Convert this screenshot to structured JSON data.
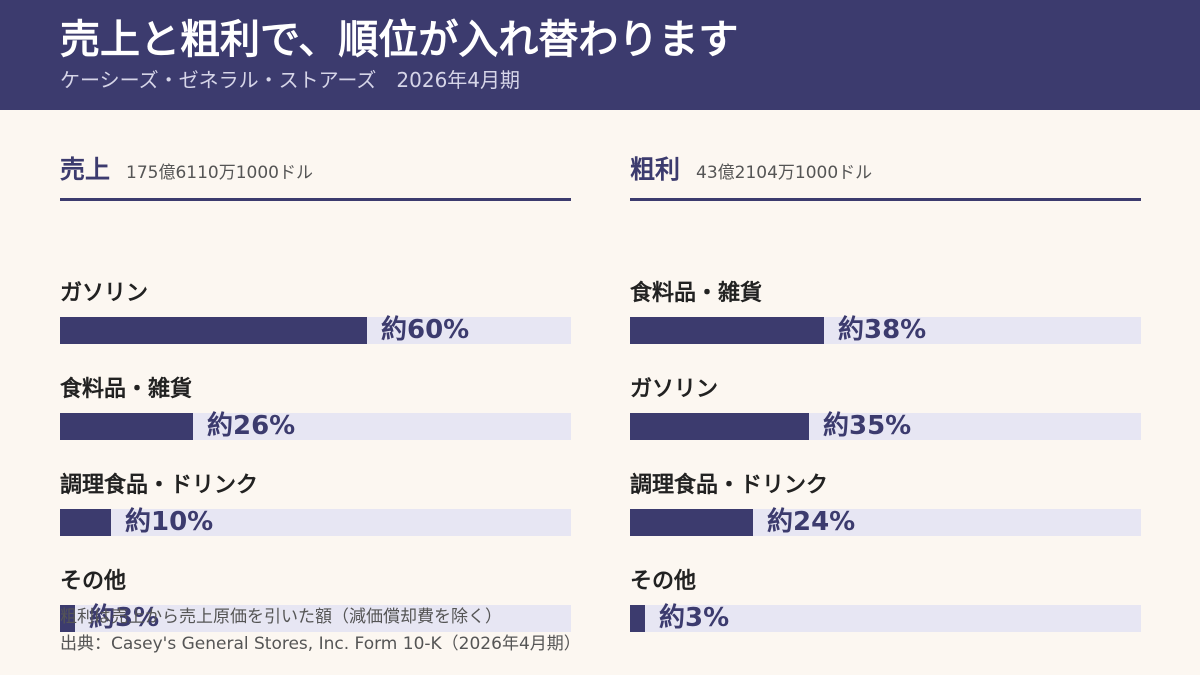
{
  "header": {
    "title": "売上と粗利で、順位が入れ替わります",
    "subtitle": "ケーシーズ・ゼネラル・ストアーズ　2026年4月期"
  },
  "colors": {
    "header_bg": "#3c3b6e",
    "bar": "#3c3b6e",
    "track": "#e7e6f3",
    "background": "#fcf7f1"
  },
  "chart_data": [
    {
      "type": "bar",
      "orientation": "horizontal",
      "title": "売上",
      "subtitle": "175億6110万1000ドル",
      "xlim": [
        0,
        100
      ],
      "categories": [
        "ガソリン",
        "食料品・雑貨",
        "調理食品・ドリンク",
        "その他"
      ],
      "values": [
        60,
        26,
        10,
        3
      ],
      "value_labels": [
        "約60%",
        "約26%",
        "約10%",
        "約3%"
      ]
    },
    {
      "type": "bar",
      "orientation": "horizontal",
      "title": "粗利",
      "subtitle": "43億2104万1000ドル",
      "xlim": [
        0,
        100
      ],
      "categories": [
        "食料品・雑貨",
        "ガソリン",
        "調理食品・ドリンク",
        "その他"
      ],
      "values": [
        38,
        35,
        24,
        3
      ],
      "value_labels": [
        "約38%",
        "約35%",
        "約24%",
        "約3%"
      ]
    }
  ],
  "footer": {
    "note": "粗利は売上から売上原価を引いた額（減価償却費を除く）",
    "source": "出典：Casey's General Stores, Inc. Form 10-K（2026年4月期）"
  }
}
